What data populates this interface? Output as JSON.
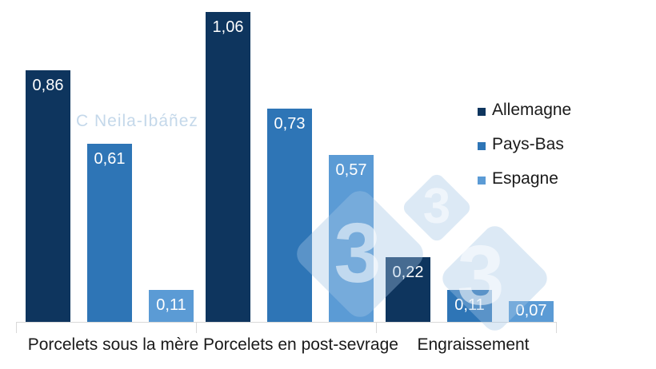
{
  "watermarks": {
    "author": "C Neila-Ibáñez",
    "logo_digit": "3"
  },
  "chart_data": {
    "type": "bar",
    "title": "",
    "categories": [
      "Porcelets sous la mère",
      "Porcelets en post-sevrage",
      "Engraissement"
    ],
    "series": [
      {
        "name": "Allemagne",
        "color": "#0e355e",
        "values": [
          0.86,
          1.06,
          0.22
        ]
      },
      {
        "name": "Pays-Bas",
        "color": "#2e75b6",
        "values": [
          0.61,
          0.73,
          0.11
        ]
      },
      {
        "name": "Espagne",
        "color": "#5b9bd5",
        "values": [
          0.11,
          0.57,
          0.07
        ]
      }
    ],
    "value_label_format": "comma-decimal",
    "value_label_color": "#ffffff",
    "ylim": [
      0,
      1.13
    ],
    "grid": false,
    "legend_position": "right",
    "axis_color": "#d9d9d9",
    "category_label_color": "#1a1a1a",
    "watermark_text_color": "#c4d8ea"
  }
}
